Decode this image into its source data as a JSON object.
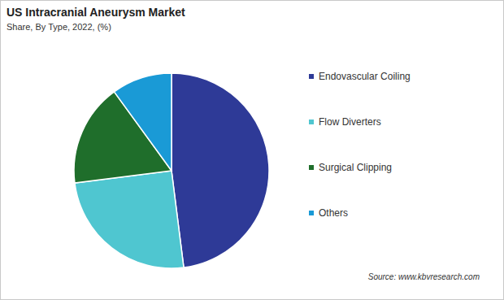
{
  "chart_data": {
    "type": "pie",
    "title": "US Intracranial Aneurysm Market",
    "subtitle": "Share, By Type, 2022, (%)",
    "categories": [
      "Endovascular Coiling",
      "Flow Diverters",
      "Surgical Clipping",
      "Others"
    ],
    "values": [
      48,
      25,
      17,
      10
    ],
    "colors": [
      "#2e3a97",
      "#4fc6d0",
      "#1f6e2b",
      "#1a9ad6"
    ],
    "legend": "right",
    "source": "Source: www.kbvresearch.com"
  }
}
